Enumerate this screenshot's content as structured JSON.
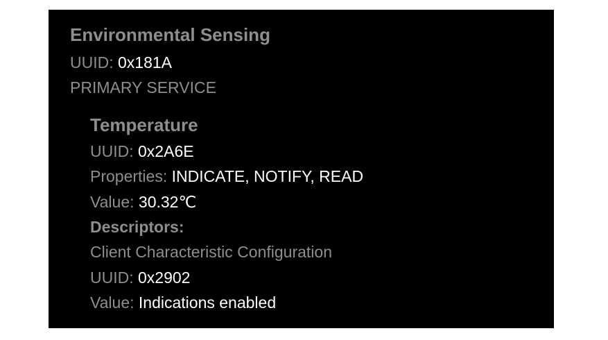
{
  "service": {
    "name": "Environmental Sensing",
    "uuid_label": "UUID:",
    "uuid": "0x181A",
    "type": "PRIMARY SERVICE"
  },
  "characteristic": {
    "name": "Temperature",
    "uuid_label": "UUID:",
    "uuid": "0x2A6E",
    "properties_label": "Properties:",
    "properties": "INDICATE, NOTIFY, READ",
    "value_label": "Value:",
    "value": "30.32℃",
    "descriptors_label": "Descriptors:"
  },
  "descriptor": {
    "name": "Client Characteristic Configuration",
    "uuid_label": "UUID:",
    "uuid": "0x2902",
    "value_label": "Value:",
    "value": "Indications enabled"
  },
  "colors": {
    "panel_background": "#000000",
    "label_gray": "#8e8e8e",
    "value_white": "#ffffff"
  }
}
